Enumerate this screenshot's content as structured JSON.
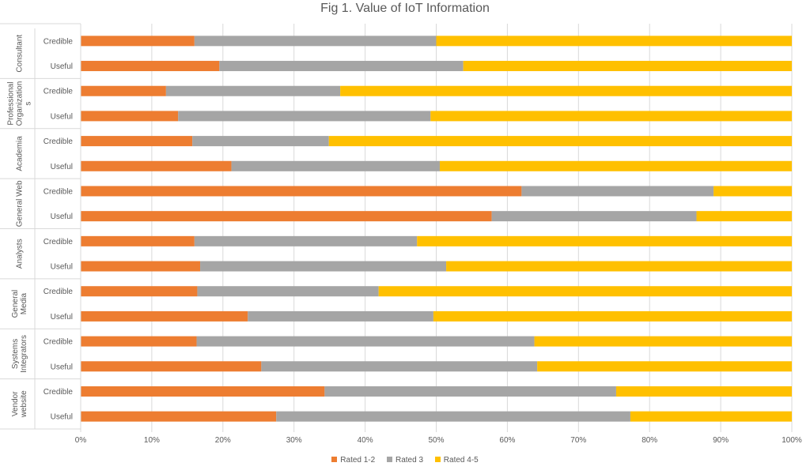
{
  "chart_data": {
    "type": "bar",
    "orientation": "horizontal",
    "stacked": "100%",
    "title": "Fig 1. Value of IoT Information",
    "xlim": [
      0,
      1
    ],
    "x_ticks": [
      "0%",
      "10%",
      "20%",
      "30%",
      "40%",
      "50%",
      "60%",
      "70%",
      "80%",
      "90%",
      "100%"
    ],
    "grid": true,
    "legend_position": "bottom",
    "groups": [
      {
        "name": "Consultant",
        "label_lines": [
          "Consultant"
        ],
        "rows": [
          {
            "label": "Credible",
            "values": [
              0.16,
              0.34,
              0.5
            ]
          },
          {
            "label": "Useful",
            "values": [
              0.195,
              0.343,
              0.462
            ]
          }
        ]
      },
      {
        "name": "Professional Organizations",
        "label_lines": [
          "Professional",
          "Organization",
          "s"
        ],
        "rows": [
          {
            "label": "Credible",
            "values": [
              0.12,
              0.245,
              0.635
            ]
          },
          {
            "label": "Useful",
            "values": [
              0.137,
              0.355,
              0.508
            ]
          }
        ]
      },
      {
        "name": "Academia",
        "label_lines": [
          "Academia"
        ],
        "rows": [
          {
            "label": "Credible",
            "values": [
              0.157,
              0.192,
              0.651
            ]
          },
          {
            "label": "Useful",
            "values": [
              0.212,
              0.293,
              0.495
            ]
          }
        ]
      },
      {
        "name": "General Web",
        "label_lines": [
          "General Web"
        ],
        "rows": [
          {
            "label": "Credible",
            "values": [
              0.62,
              0.27,
              0.11
            ]
          },
          {
            "label": "Useful",
            "values": [
              0.578,
              0.288,
              0.134
            ]
          }
        ]
      },
      {
        "name": "Analysts",
        "label_lines": [
          "Analysts"
        ],
        "rows": [
          {
            "label": "Credible",
            "values": [
              0.16,
              0.313,
              0.527
            ]
          },
          {
            "label": "Useful",
            "values": [
              0.168,
              0.346,
              0.486
            ]
          }
        ]
      },
      {
        "name": "General Media",
        "label_lines": [
          "General",
          "Media"
        ],
        "rows": [
          {
            "label": "Credible",
            "values": [
              0.164,
              0.255,
              0.581
            ]
          },
          {
            "label": "Useful",
            "values": [
              0.235,
              0.261,
              0.504
            ]
          }
        ]
      },
      {
        "name": "Systems Integrators",
        "label_lines": [
          "Systems",
          "Integrators"
        ],
        "rows": [
          {
            "label": "Credible",
            "values": [
              0.163,
              0.475,
              0.362
            ]
          },
          {
            "label": "Useful",
            "values": [
              0.254,
              0.388,
              0.358
            ]
          }
        ]
      },
      {
        "name": "Vendor website",
        "label_lines": [
          "Vendor",
          "website"
        ],
        "rows": [
          {
            "label": "Credible",
            "values": [
              0.343,
              0.41,
              0.247
            ]
          },
          {
            "label": "Useful",
            "values": [
              0.275,
              0.498,
              0.227
            ]
          }
        ]
      }
    ],
    "series": [
      {
        "name": "Rated 1-2",
        "color": "#ED7D31"
      },
      {
        "name": "Rated 3",
        "color": "#A5A5A5"
      },
      {
        "name": "Rated 4-5",
        "color": "#FFC000"
      }
    ]
  }
}
